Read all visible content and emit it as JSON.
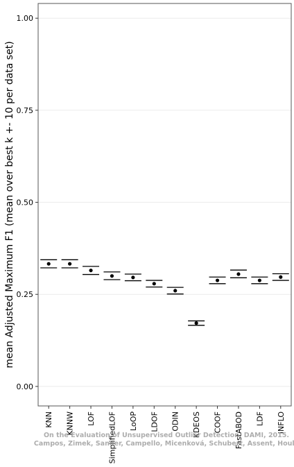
{
  "chart_data": {
    "type": "errorbar",
    "y_label": "mean Adjusted Maximum F1 (mean over best k +- 10 per data set)",
    "categories": [
      "KNN",
      "KNNW",
      "LOF",
      "SimplifiedLOF",
      "LoOP",
      "LDOF",
      "ODIN",
      "KDEOS",
      "COOF",
      "FastABOD",
      "LDF",
      "INFLO"
    ],
    "values": [
      0.333,
      0.333,
      0.315,
      0.3,
      0.296,
      0.279,
      0.26,
      0.172,
      0.288,
      0.305,
      0.288,
      0.297
    ],
    "lower": [
      0.322,
      0.322,
      0.304,
      0.29,
      0.287,
      0.27,
      0.251,
      0.166,
      0.279,
      0.295,
      0.279,
      0.288
    ],
    "upper": [
      0.344,
      0.344,
      0.326,
      0.311,
      0.305,
      0.288,
      0.269,
      0.178,
      0.297,
      0.316,
      0.297,
      0.306
    ],
    "color": "#000000",
    "ylim": [
      -0.053,
      1.04
    ],
    "yticks": [
      {
        "value": 0,
        "label": "0.00"
      },
      {
        "value": 0.25,
        "label": "0.25"
      },
      {
        "value": 0.5,
        "label": "0.50"
      },
      {
        "value": 0.75,
        "label": "0.75"
      },
      {
        "value": 1,
        "label": "1.00"
      }
    ],
    "grid": true,
    "annotations": [
      "On the Evaluation of Unsupervised Outlier Detection, DAMI, 2015.",
      "Campos, Zimek, Sander, Campello, Micenková, Schubert, Assent, Houle"
    ]
  }
}
